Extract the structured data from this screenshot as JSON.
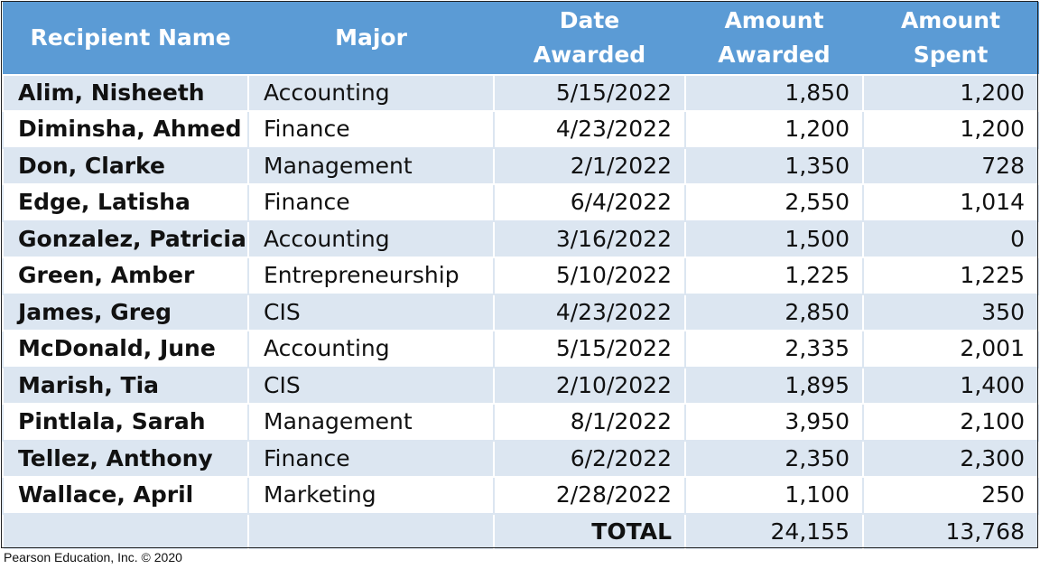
{
  "table": {
    "headers": {
      "recipient": "Recipient Name",
      "major": "Major",
      "date_line1": "Date",
      "date_line2": "Awarded",
      "awarded_line1": "Amount",
      "awarded_line2": "Awarded",
      "spent_line1": "Amount",
      "spent_line2": "Spent"
    },
    "rows": [
      {
        "name": "Alim, Nisheeth",
        "major": "Accounting",
        "date": "5/15/2022",
        "awarded": "1,850",
        "spent": "1,200"
      },
      {
        "name": "Diminsha, Ahmed",
        "major": "Finance",
        "date": "4/23/2022",
        "awarded": "1,200",
        "spent": "1,200"
      },
      {
        "name": "Don, Clarke",
        "major": "Management",
        "date": "2/1/2022",
        "awarded": "1,350",
        "spent": "728"
      },
      {
        "name": "Edge, Latisha",
        "major": "Finance",
        "date": "6/4/2022",
        "awarded": "2,550",
        "spent": "1,014"
      },
      {
        "name": "Gonzalez, Patricia",
        "major": "Accounting",
        "date": "3/16/2022",
        "awarded": "1,500",
        "spent": "0"
      },
      {
        "name": "Green, Amber",
        "major": "Entrepreneurship",
        "date": "5/10/2022",
        "awarded": "1,225",
        "spent": "1,225"
      },
      {
        "name": "James, Greg",
        "major": "CIS",
        "date": "4/23/2022",
        "awarded": "2,850",
        "spent": "350"
      },
      {
        "name": "McDonald, June",
        "major": "Accounting",
        "date": "5/15/2022",
        "awarded": "2,335",
        "spent": "2,001"
      },
      {
        "name": "Marish, Tia",
        "major": "CIS",
        "date": "2/10/2022",
        "awarded": "1,895",
        "spent": "1,400"
      },
      {
        "name": "Pintlala, Sarah",
        "major": "Management",
        "date": "8/1/2022",
        "awarded": "3,950",
        "spent": "2,100"
      },
      {
        "name": "Tellez, Anthony",
        "major": "Finance",
        "date": "6/2/2022",
        "awarded": "2,350",
        "spent": "2,300"
      },
      {
        "name": "Wallace, April",
        "major": "Marketing",
        "date": "2/28/2022",
        "awarded": "1,100",
        "spent": "250"
      }
    ],
    "total": {
      "label": "TOTAL",
      "awarded": "24,155",
      "spent": "13,768"
    }
  },
  "colors": {
    "header_bg": "#5b9bd5",
    "band_bg": "#dce6f1"
  },
  "footer": {
    "copyright": "Pearson Education, Inc. © 2020"
  }
}
